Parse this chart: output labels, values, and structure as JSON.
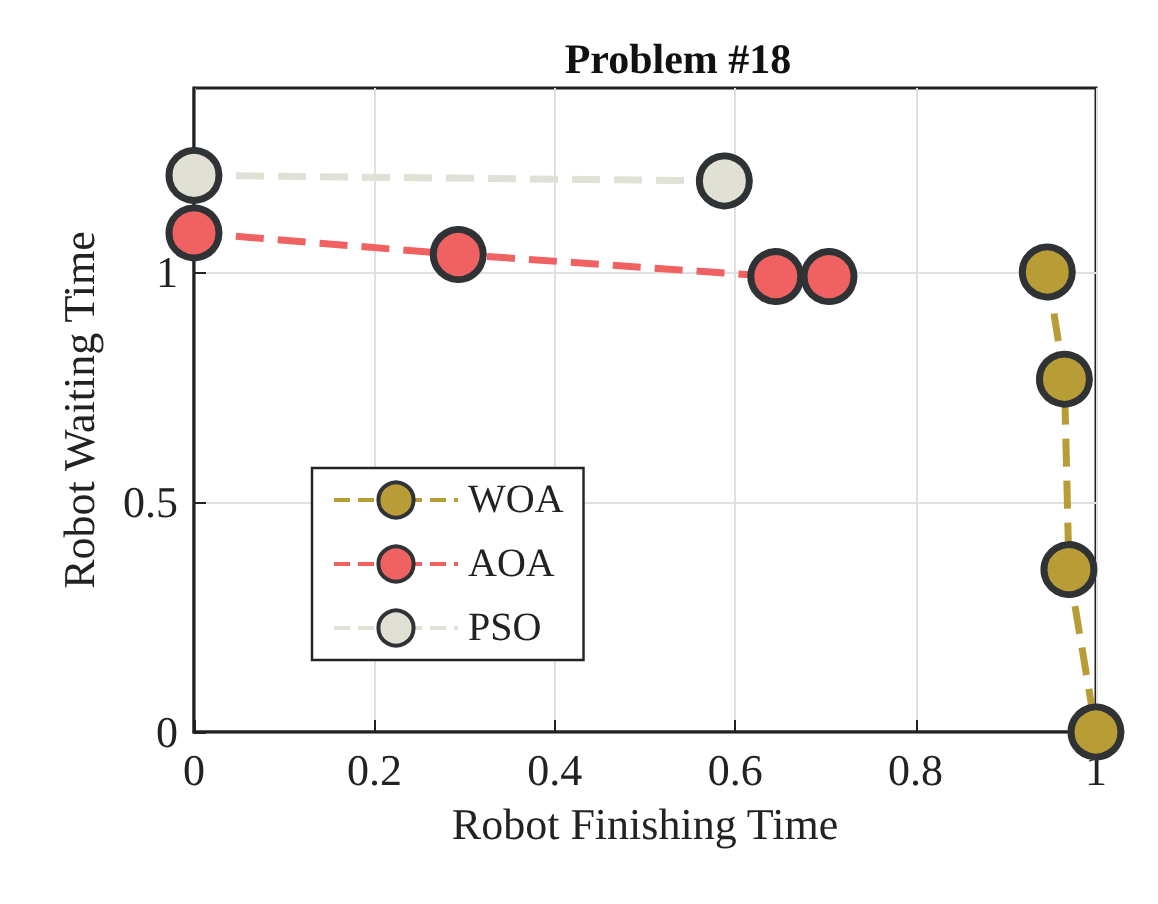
{
  "chart_data": {
    "type": "line",
    "title": "Problem #18",
    "xlabel": "Robot Finishing Time",
    "ylabel": "Robot Waiting Time",
    "xlim": [
      0,
      1
    ],
    "xticks": [
      0,
      0.2,
      0.4,
      0.6,
      0.8,
      1
    ],
    "ylim": [
      0,
      1.4
    ],
    "yticks": [
      0,
      0.5,
      1
    ],
    "grid": true,
    "legend": "left",
    "marker": "circle",
    "line_style": "dashed",
    "series": [
      {
        "name": "WOA",
        "color": "#b89d36",
        "x": [
          0.946,
          0.965,
          0.97,
          1
        ],
        "values": [
          1.0,
          0.767,
          0.353,
          0
        ]
      },
      {
        "name": "AOA",
        "color": "#f06262",
        "x": [
          0,
          0.293,
          0.645,
          0.704
        ],
        "values": [
          1.085,
          1.038,
          0.99,
          0.99
        ]
      },
      {
        "name": "PSO",
        "color": "#e0e0d4",
        "x": [
          0,
          0.588
        ],
        "values": [
          1.21,
          1.198
        ]
      }
    ]
  }
}
